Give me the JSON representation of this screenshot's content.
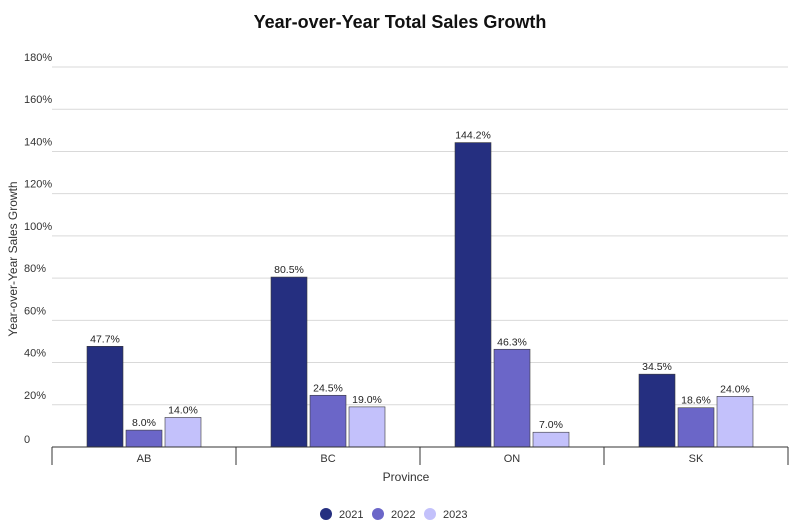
{
  "chart_data": {
    "type": "bar",
    "title": "Year-over-Year Total Sales Growth",
    "xlabel": "Province",
    "ylabel": "Year-over-Year Sales Growth",
    "categories": [
      "AB",
      "BC",
      "ON",
      "SK"
    ],
    "series": [
      {
        "name": "2021",
        "color": "#252f80",
        "values": [
          47.7,
          80.5,
          144.2,
          34.5
        ],
        "labels": [
          "47.7%",
          "80.5%",
          "144.2%",
          "34.5%"
        ]
      },
      {
        "name": "2022",
        "color": "#6b66c8",
        "values": [
          8.0,
          24.5,
          46.3,
          18.6
        ],
        "labels": [
          "8.0%",
          "24.5%",
          "46.3%",
          "18.6%"
        ]
      },
      {
        "name": "2023",
        "color": "#c3c1fb",
        "values": [
          14.0,
          19.0,
          7.0,
          24.0
        ],
        "labels": [
          "14.0%",
          "19.0%",
          "7.0%",
          "24.0%"
        ]
      }
    ],
    "ylim": [
      0,
      180
    ],
    "yticks": [
      0,
      20,
      40,
      60,
      80,
      100,
      120,
      140,
      160,
      180
    ],
    "ytick_labels": [
      "0",
      "20%",
      "40%",
      "60%",
      "80%",
      "100%",
      "120%",
      "140%",
      "160%",
      "180%"
    ],
    "grid": true,
    "legend_position": "bottom-center"
  }
}
